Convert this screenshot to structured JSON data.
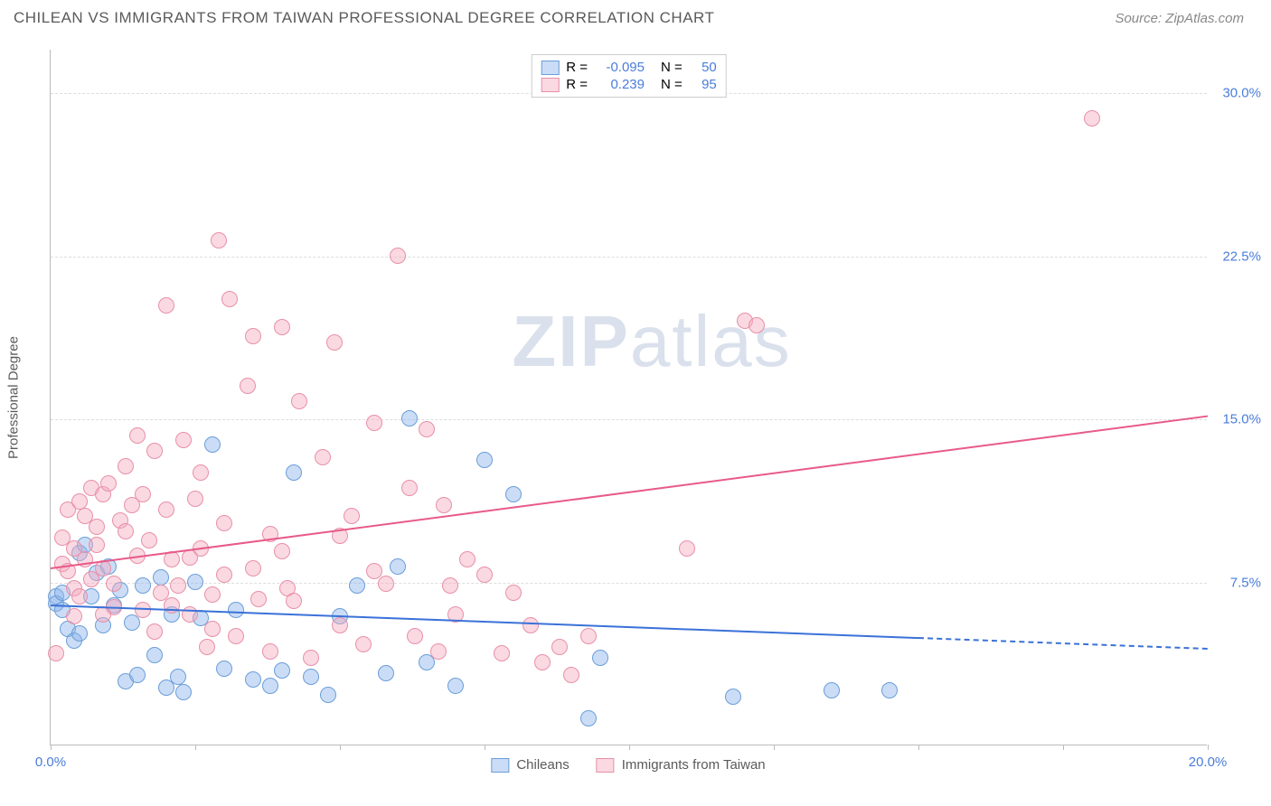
{
  "header": {
    "title": "CHILEAN VS IMMIGRANTS FROM TAIWAN PROFESSIONAL DEGREE CORRELATION CHART",
    "source": "Source: ZipAtlas.com"
  },
  "chart": {
    "type": "scatter",
    "ylabel": "Professional Degree",
    "xlim": [
      0,
      20
    ],
    "ylim": [
      0,
      32
    ],
    "xticks": [
      0,
      2.5,
      5,
      7.5,
      10,
      12.5,
      15,
      17.5,
      20
    ],
    "xtick_labels": {
      "0": "0.0%",
      "20": "20.0%"
    },
    "yticks": [
      7.5,
      15,
      22.5,
      30
    ],
    "ytick_labels": [
      "7.5%",
      "15.0%",
      "22.5%",
      "30.0%"
    ],
    "background_color": "#ffffff",
    "grid_color": "#dddddd",
    "axis_color": "#bbbbbb",
    "tick_label_color": "#4a7ddb",
    "watermark": "ZIPatlas",
    "marker_radius": 9,
    "series": [
      {
        "name": "Chileans",
        "label": "Chileans",
        "marker_fill": "rgba(140, 180, 235, 0.45)",
        "marker_stroke": "#6a9ed8",
        "trend_color": "#3a72d8",
        "trend_start": [
          0,
          6.5
        ],
        "trend_end": [
          15,
          5.0
        ],
        "trend_dash_end": [
          20,
          4.5
        ],
        "R": "-0.095",
        "N": "50",
        "points": [
          [
            0.1,
            6.8
          ],
          [
            0.1,
            6.5
          ],
          [
            0.2,
            6.2
          ],
          [
            0.2,
            7.0
          ],
          [
            0.3,
            5.3
          ],
          [
            0.4,
            4.8
          ],
          [
            0.5,
            8.8
          ],
          [
            0.5,
            5.1
          ],
          [
            0.6,
            9.2
          ],
          [
            0.7,
            6.8
          ],
          [
            0.8,
            7.9
          ],
          [
            0.9,
            5.5
          ],
          [
            1.0,
            8.2
          ],
          [
            1.1,
            6.4
          ],
          [
            1.2,
            7.1
          ],
          [
            1.3,
            2.9
          ],
          [
            1.4,
            5.6
          ],
          [
            1.5,
            3.2
          ],
          [
            1.6,
            7.3
          ],
          [
            1.8,
            4.1
          ],
          [
            1.9,
            7.7
          ],
          [
            2.0,
            2.6
          ],
          [
            2.1,
            6.0
          ],
          [
            2.2,
            3.1
          ],
          [
            2.3,
            2.4
          ],
          [
            2.5,
            7.5
          ],
          [
            2.6,
            5.8
          ],
          [
            2.8,
            13.8
          ],
          [
            3.0,
            3.5
          ],
          [
            3.2,
            6.2
          ],
          [
            3.5,
            3.0
          ],
          [
            3.8,
            2.7
          ],
          [
            4.0,
            3.4
          ],
          [
            4.2,
            12.5
          ],
          [
            4.5,
            3.1
          ],
          [
            4.8,
            2.3
          ],
          [
            5.0,
            5.9
          ],
          [
            5.3,
            7.3
          ],
          [
            5.8,
            3.3
          ],
          [
            6.0,
            8.2
          ],
          [
            6.2,
            15.0
          ],
          [
            6.5,
            3.8
          ],
          [
            7.0,
            2.7
          ],
          [
            7.5,
            13.1
          ],
          [
            8.0,
            11.5
          ],
          [
            9.3,
            1.2
          ],
          [
            9.5,
            4.0
          ],
          [
            11.8,
            2.2
          ],
          [
            13.5,
            2.5
          ],
          [
            14.5,
            2.5
          ]
        ]
      },
      {
        "name": "Immigrants from Taiwan",
        "label": "Immigrants from Taiwan",
        "marker_fill": "rgba(245, 170, 190, 0.45)",
        "marker_stroke": "#e890a8",
        "trend_color": "#e85a8a",
        "trend_start": [
          0,
          8.2
        ],
        "trend_end": [
          20,
          15.2
        ],
        "R": "0.239",
        "N": "95",
        "points": [
          [
            0.1,
            4.2
          ],
          [
            0.2,
            8.3
          ],
          [
            0.2,
            9.5
          ],
          [
            0.3,
            8.0
          ],
          [
            0.3,
            10.8
          ],
          [
            0.4,
            7.2
          ],
          [
            0.4,
            9.0
          ],
          [
            0.5,
            11.2
          ],
          [
            0.5,
            6.8
          ],
          [
            0.6,
            10.5
          ],
          [
            0.6,
            8.5
          ],
          [
            0.7,
            11.8
          ],
          [
            0.7,
            7.6
          ],
          [
            0.8,
            10.0
          ],
          [
            0.8,
            9.2
          ],
          [
            0.9,
            11.5
          ],
          [
            0.9,
            8.1
          ],
          [
            1.0,
            12.0
          ],
          [
            1.1,
            7.4
          ],
          [
            1.2,
            10.3
          ],
          [
            1.3,
            9.8
          ],
          [
            1.4,
            11.0
          ],
          [
            1.5,
            8.7
          ],
          [
            1.5,
            14.2
          ],
          [
            1.6,
            6.2
          ],
          [
            1.7,
            9.4
          ],
          [
            1.8,
            13.5
          ],
          [
            1.9,
            7.0
          ],
          [
            2.0,
            10.8
          ],
          [
            2.0,
            20.2
          ],
          [
            2.1,
            8.5
          ],
          [
            2.2,
            7.3
          ],
          [
            2.3,
            14.0
          ],
          [
            2.4,
            6.0
          ],
          [
            2.5,
            11.3
          ],
          [
            2.6,
            9.0
          ],
          [
            2.7,
            4.5
          ],
          [
            2.8,
            5.3
          ],
          [
            2.9,
            23.2
          ],
          [
            3.0,
            7.8
          ],
          [
            3.1,
            20.5
          ],
          [
            3.2,
            5.0
          ],
          [
            3.4,
            16.5
          ],
          [
            3.5,
            18.8
          ],
          [
            3.6,
            6.7
          ],
          [
            3.8,
            4.3
          ],
          [
            4.0,
            19.2
          ],
          [
            4.1,
            7.2
          ],
          [
            4.3,
            15.8
          ],
          [
            4.5,
            4.0
          ],
          [
            4.7,
            13.2
          ],
          [
            4.9,
            18.5
          ],
          [
            5.0,
            5.5
          ],
          [
            5.2,
            10.5
          ],
          [
            5.4,
            4.6
          ],
          [
            5.6,
            8.0
          ],
          [
            5.8,
            7.4
          ],
          [
            6.0,
            22.5
          ],
          [
            6.2,
            11.8
          ],
          [
            6.3,
            5.0
          ],
          [
            6.5,
            14.5
          ],
          [
            6.7,
            4.3
          ],
          [
            6.9,
            7.3
          ],
          [
            7.0,
            6.0
          ],
          [
            7.2,
            8.5
          ],
          [
            7.5,
            7.8
          ],
          [
            7.8,
            4.2
          ],
          [
            8.0,
            7.0
          ],
          [
            8.3,
            5.5
          ],
          [
            8.5,
            3.8
          ],
          [
            8.8,
            4.5
          ],
          [
            9.0,
            3.2
          ],
          [
            9.3,
            5.0
          ],
          [
            11.0,
            9.0
          ],
          [
            12.0,
            19.5
          ],
          [
            12.2,
            19.3
          ],
          [
            18.0,
            28.8
          ],
          [
            3.8,
            9.7
          ],
          [
            4.2,
            6.6
          ],
          [
            2.6,
            12.5
          ],
          [
            1.3,
            12.8
          ],
          [
            0.4,
            5.9
          ],
          [
            1.8,
            5.2
          ],
          [
            2.4,
            8.6
          ],
          [
            3.0,
            10.2
          ],
          [
            4.0,
            8.9
          ],
          [
            5.0,
            9.6
          ],
          [
            1.1,
            6.3
          ],
          [
            2.8,
            6.9
          ],
          [
            3.5,
            8.1
          ],
          [
            0.9,
            6.0
          ],
          [
            1.6,
            11.5
          ],
          [
            2.1,
            6.4
          ],
          [
            5.6,
            14.8
          ],
          [
            6.8,
            11.0
          ]
        ]
      }
    ],
    "legend_top": {
      "R_label": "R =",
      "N_label": "N ="
    },
    "legend_bottom": [
      {
        "swatch_fill": "rgba(140, 180, 235, 0.45)",
        "swatch_stroke": "#6a9ed8",
        "label": "Chileans"
      },
      {
        "swatch_fill": "rgba(245, 170, 190, 0.45)",
        "swatch_stroke": "#e890a8",
        "label": "Immigrants from Taiwan"
      }
    ]
  }
}
